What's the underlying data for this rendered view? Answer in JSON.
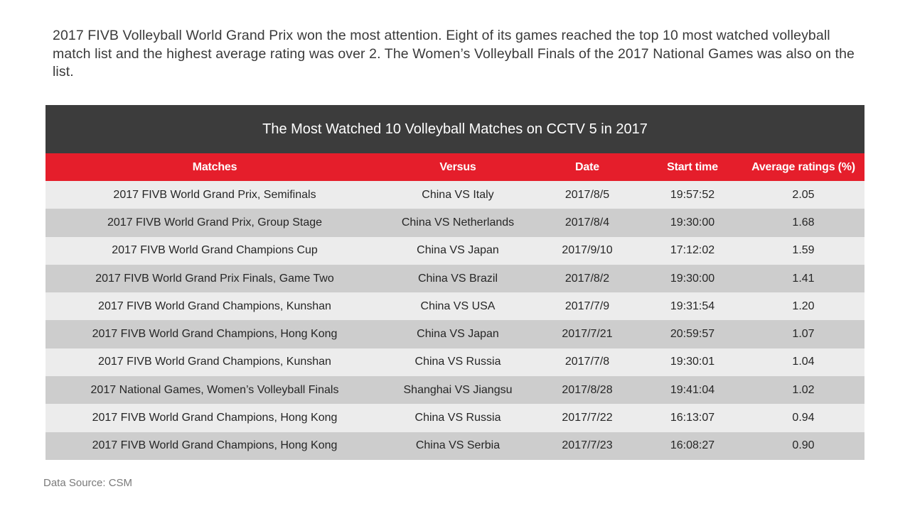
{
  "intro_text": "2017 FIVB Volleyball World Grand Prix won the most attention. Eight of its games reached the top 10 most watched volleyball match list and the highest average rating was over 2. The Women’s Volleyball Finals of the 2017 National Games was also on the list.",
  "table": {
    "title": "The Most Watched 10 Volleyball Matches on CCTV 5 in 2017",
    "headers": [
      "Matches",
      "Versus",
      "Date",
      "Start time",
      "Average ratings (%)"
    ],
    "rows": [
      [
        "2017 FIVB World Grand Prix, Semifinals",
        "China VS Italy",
        "2017/8/5",
        "19:57:52",
        "2.05"
      ],
      [
        "2017 FIVB World Grand Prix, Group Stage",
        "China VS Netherlands",
        "2017/8/4",
        "19:30:00",
        "1.68"
      ],
      [
        "2017 FIVB World Grand Champions Cup",
        "China VS Japan",
        "2017/9/10",
        "17:12:02",
        "1.59"
      ],
      [
        "2017 FIVB World Grand Prix Finals, Game Two",
        "China VS Brazil",
        "2017/8/2",
        "19:30:00",
        "1.41"
      ],
      [
        "2017 FIVB World Grand Champions, Kunshan",
        "China VS USA",
        "2017/7/9",
        "19:31:54",
        "1.20"
      ],
      [
        "2017 FIVB World Grand Champions, Hong Kong",
        "China VS Japan",
        "2017/7/21",
        "20:59:57",
        "1.07"
      ],
      [
        "2017 FIVB World Grand Champions, Kunshan",
        "China VS Russia",
        "2017/7/8",
        "19:30:01",
        "1.04"
      ],
      [
        "2017 National Games, Women’s Volleyball Finals",
        "Shanghai VS Jiangsu",
        "2017/8/28",
        "19:41:04",
        "1.02"
      ],
      [
        "2017 FIVB World Grand Champions, Hong Kong",
        "China VS Russia",
        "2017/7/22",
        "16:13:07",
        "0.94"
      ],
      [
        "2017 FIVB World Grand Champions, Hong Kong",
        "China VS Serbia",
        "2017/7/23",
        "16:08:27",
        "0.90"
      ]
    ]
  },
  "source": "Data Source: CSM",
  "colors": {
    "title_bar": "#3c3c3c",
    "header_bar": "#e51e2b",
    "row_light": "#ececec",
    "row_dark": "#cdcdcd"
  }
}
